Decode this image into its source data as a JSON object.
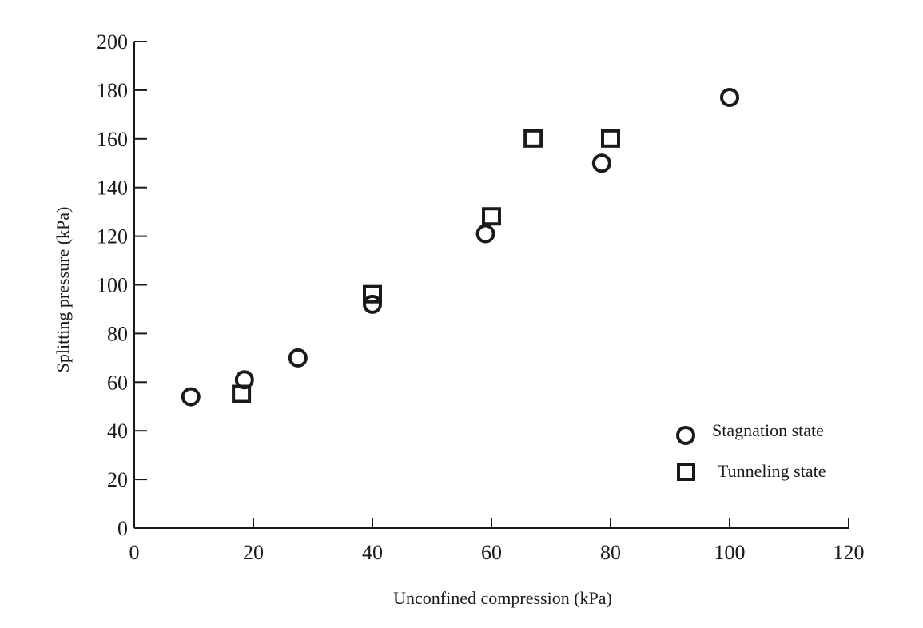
{
  "chart_data": {
    "type": "scatter",
    "title": "",
    "xlabel": "Unconfined compression   (kPa)",
    "ylabel": "Splitting pressure (kPa)",
    "xlim": [
      0,
      120
    ],
    "ylim": [
      0,
      200
    ],
    "x_ticks": [
      0,
      20,
      40,
      60,
      80,
      100,
      120
    ],
    "y_ticks": [
      0,
      20,
      40,
      60,
      80,
      100,
      120,
      140,
      160,
      180,
      200
    ],
    "grid": false,
    "legend_position": "right",
    "series": [
      {
        "name": "Stagnation state",
        "marker": "circle",
        "points": [
          {
            "x": 9.5,
            "y": 54
          },
          {
            "x": 18.5,
            "y": 61
          },
          {
            "x": 27.5,
            "y": 70
          },
          {
            "x": 40,
            "y": 92
          },
          {
            "x": 59,
            "y": 121
          },
          {
            "x": 78.5,
            "y": 150
          },
          {
            "x": 100,
            "y": 177
          }
        ]
      },
      {
        "name": "Tunneling state",
        "marker": "square",
        "points": [
          {
            "x": 18,
            "y": 55
          },
          {
            "x": 40,
            "y": 96
          },
          {
            "x": 60,
            "y": 128
          },
          {
            "x": 67,
            "y": 160
          },
          {
            "x": 80,
            "y": 160
          }
        ]
      }
    ],
    "colors": {
      "ink": "#1a1a1a",
      "background": "#ffffff"
    }
  }
}
